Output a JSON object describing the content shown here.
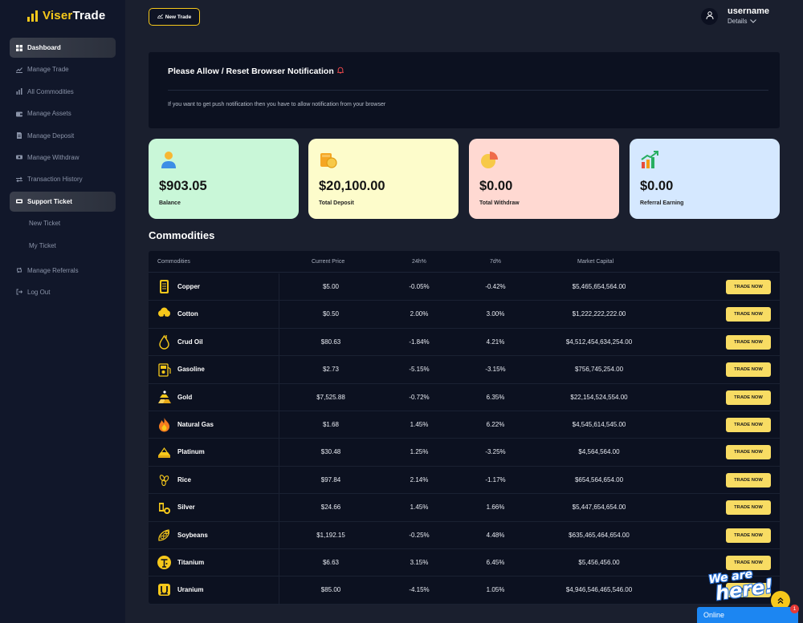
{
  "brand": {
    "name_part1": "Viser",
    "name_part2": "Trade"
  },
  "header": {
    "new_trade_label": "New Trade",
    "username": "username",
    "details_label": "Details"
  },
  "sidebar": {
    "items": [
      {
        "label": "Dashboard",
        "icon": "grid-icon"
      },
      {
        "label": "Manage Trade",
        "icon": "chart-line-icon"
      },
      {
        "label": "All Commodities",
        "icon": "bars-icon"
      },
      {
        "label": "Manage Assets",
        "icon": "wallet-icon"
      },
      {
        "label": "Manage Deposit",
        "icon": "file-icon"
      },
      {
        "label": "Manage Withdraw",
        "icon": "money-icon"
      },
      {
        "label": "Transaction History",
        "icon": "exchange-icon"
      },
      {
        "label": "Support Ticket",
        "icon": "ticket-icon"
      },
      {
        "label": "New Ticket",
        "icon": ""
      },
      {
        "label": "My Ticket",
        "icon": ""
      },
      {
        "label": "Manage Referrals",
        "icon": "retweet-icon"
      },
      {
        "label": "Log Out",
        "icon": "logout-icon"
      }
    ]
  },
  "notice": {
    "title": "Please Allow / Reset Browser Notification",
    "text": "If you want to get push notification then you have to allow notification from your browser"
  },
  "cards": [
    {
      "value": "$903.05",
      "label": "Balance",
      "color": "#c9f7d8",
      "icon": "user-icon"
    },
    {
      "value": "$20,100.00",
      "label": "Total Deposit",
      "color": "#fdfccb",
      "icon": "coins-icon"
    },
    {
      "value": "$0.00",
      "label": "Total Withdraw",
      "color": "#ffd9d2",
      "icon": "pie-icon"
    },
    {
      "value": "$0.00",
      "label": "Referral Earning",
      "color": "#d5e8ff",
      "icon": "growth-chart-icon"
    }
  ],
  "commodities": {
    "title": "Commodities",
    "headers": [
      "Commodities",
      "Current Price",
      "24h%",
      "7d%",
      "Market Capital"
    ],
    "trade_label": "TRADE NOW",
    "rows": [
      {
        "name": "Copper",
        "price": "$5.00",
        "h24": "-0.05%",
        "d7": "-0.42%",
        "cap": "$5,465,654,564.00",
        "icon": "copper-icon"
      },
      {
        "name": "Cotton",
        "price": "$0.50",
        "h24": "2.00%",
        "d7": "3.00%",
        "cap": "$1,222,222,222.00",
        "icon": "cotton-icon"
      },
      {
        "name": "Crud Oil",
        "price": "$80.63",
        "h24": "-1.84%",
        "d7": "4.21%",
        "cap": "$4,512,454,634,254.00",
        "icon": "oil-drop-icon"
      },
      {
        "name": "Gasoline",
        "price": "$2.73",
        "h24": "-5.15%",
        "d7": "-3.15%",
        "cap": "$756,745,254.00",
        "icon": "gasoline-icon"
      },
      {
        "name": "Gold",
        "price": "$7,525.88",
        "h24": "-0.72%",
        "d7": "6.35%",
        "cap": "$22,154,524,554.00",
        "icon": "gold-icon"
      },
      {
        "name": "Natural Gas",
        "price": "$1.68",
        "h24": "1.45%",
        "d7": "6.22%",
        "cap": "$4,545,614,545.00",
        "icon": "flame-icon"
      },
      {
        "name": "Platinum",
        "price": "$30.48",
        "h24": "1.25%",
        "d7": "-3.25%",
        "cap": "$4,564,564.00",
        "icon": "platinum-icon"
      },
      {
        "name": "Rice",
        "price": "$97.84",
        "h24": "2.14%",
        "d7": "-1.17%",
        "cap": "$654,564,654.00",
        "icon": "rice-icon"
      },
      {
        "name": "Silver",
        "price": "$24.66",
        "h24": "1.45%",
        "d7": "1.66%",
        "cap": "$5,447,654,654.00",
        "icon": "silver-icon"
      },
      {
        "name": "Soybeans",
        "price": "$1,192.15",
        "h24": "-0.25%",
        "d7": "4.48%",
        "cap": "$635,465,464,654.00",
        "icon": "soybeans-icon"
      },
      {
        "name": "Titanium",
        "price": "$6.63",
        "h24": "3.15%",
        "d7": "6.45%",
        "cap": "$5,456,456.00",
        "icon": "titanium-icon"
      },
      {
        "name": "Uranium",
        "price": "$85.00",
        "h24": "-4.15%",
        "d7": "1.05%",
        "cap": "$4,946,546,465,546.00",
        "icon": "uranium-icon"
      }
    ]
  },
  "chat": {
    "label": "Online",
    "badge": "1",
    "promo_line1": "We are",
    "promo_line2": "here!"
  },
  "colors": {
    "accent": "#f6c81b",
    "sidebar": "#11172a",
    "page": "#1a1f2e",
    "panel": "#0c1120",
    "chat": "#1c86f2"
  }
}
